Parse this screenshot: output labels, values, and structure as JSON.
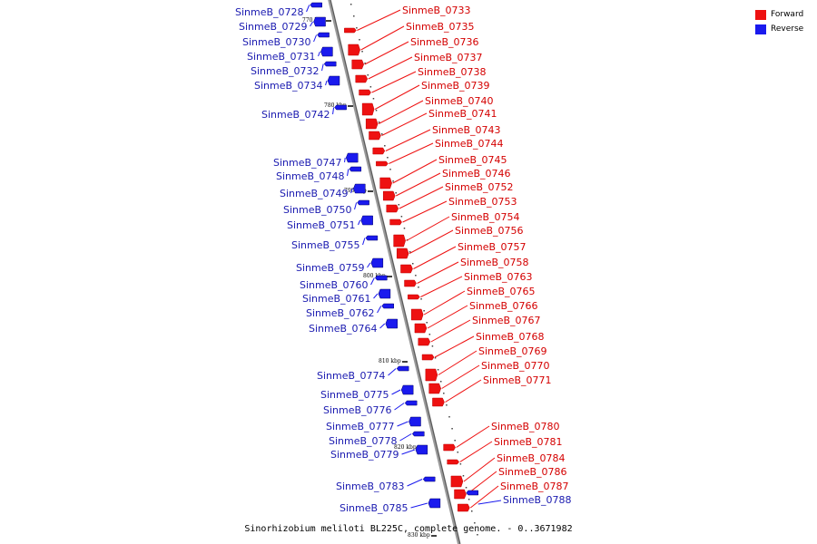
{
  "legend": {
    "forward_label": "Forward",
    "reverse_label": "Reverse",
    "forward_color": "#ee1111",
    "reverse_color": "#1a1aee"
  },
  "caption": "Sinorhizobium meliloti BL225C, complete genome. - 0..3671982",
  "axis_ticks": [
    "770 kbp",
    "780 kbp",
    "790 kbp",
    "800 kbp",
    "810 kbp",
    "820 kbp",
    "830 kbp"
  ],
  "genes_forward": [
    "SinmeB_0733",
    "SinmeB_0735",
    "SinmeB_0736",
    "SinmeB_0737",
    "SinmeB_0738",
    "SinmeB_0739",
    "SinmeB_0740",
    "SinmeB_0741",
    "SinmeB_0743",
    "SinmeB_0744",
    "SinmeB_0745",
    "SinmeB_0746",
    "SinmeB_0752",
    "SinmeB_0753",
    "SinmeB_0754",
    "SinmeB_0756",
    "SinmeB_0757",
    "SinmeB_0758",
    "SinmeB_0763",
    "SinmeB_0765",
    "SinmeB_0766",
    "SinmeB_0767",
    "SinmeB_0768",
    "SinmeB_0769",
    "SinmeB_0770",
    "SinmeB_0771",
    "SinmeB_0780",
    "SinmeB_0781",
    "SinmeB_0784",
    "SinmeB_0786",
    "SinmeB_0787"
  ],
  "genes_reverse": [
    "SinmeB_0728",
    "SinmeB_0729",
    "SinmeB_0730",
    "SinmeB_0731",
    "SinmeB_0732",
    "SinmeB_0734",
    "SinmeB_0742",
    "SinmeB_0747",
    "SinmeB_0748",
    "SinmeB_0749",
    "SinmeB_0750",
    "SinmeB_0751",
    "SinmeB_0755",
    "SinmeB_0759",
    "SinmeB_0760",
    "SinmeB_0761",
    "SinmeB_0762",
    "SinmeB_0764",
    "SinmeB_0774",
    "SinmeB_0775",
    "SinmeB_0776",
    "SinmeB_0777",
    "SinmeB_0778",
    "SinmeB_0779",
    "SinmeB_0783",
    "SinmeB_0785",
    "SinmeB_0788"
  ]
}
